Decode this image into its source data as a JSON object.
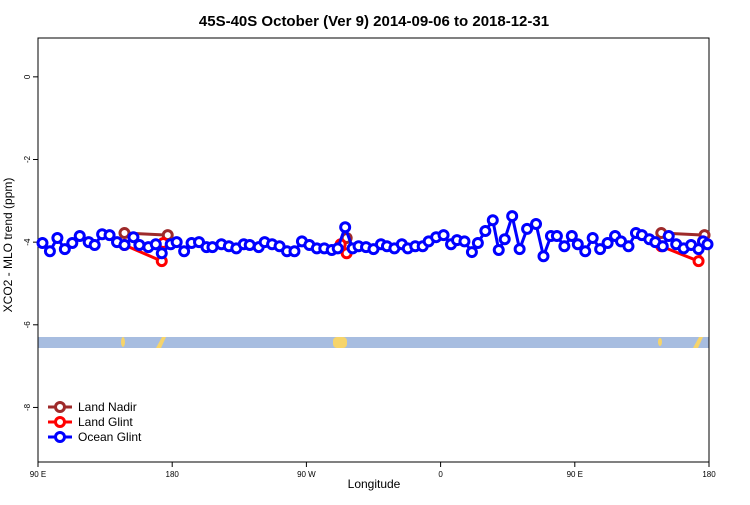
{
  "chart_data": {
    "type": "line",
    "title": "45S-40S October (Ver 9)   2014-09-06 to 2018-12-31",
    "x_label": "Longitude",
    "y_label": "XCO2 - MLO trend (ppm)",
    "xlim": [
      90,
      540
    ],
    "ylim": [
      -9.32,
      0.94
    ],
    "xticks": [
      {
        "value": 90,
        "label": "90 E"
      },
      180,
      {
        "value": 270,
        "label": "90 W"
      },
      {
        "value": 360,
        "label": "0"
      },
      {
        "value": 450,
        "label": "90 E"
      },
      {
        "value": 540,
        "label": "180"
      }
    ],
    "yticks": [
      0,
      -2,
      -4,
      -6,
      -8
    ],
    "legend": "bottom-left",
    "series": [
      {
        "name": "Land Nadir",
        "color": "#9e2a2a",
        "x": [
          148,
          177,
          297,
          508,
          537
        ],
        "values": [
          -3.78,
          -3.83,
          -3.9,
          -3.78,
          -3.83
        ]
      },
      {
        "name": "Land Glint",
        "color": "#ff0000",
        "x": [
          148,
          173,
          174,
          293,
          297,
          508,
          533,
          536
        ],
        "values": [
          -4.07,
          -4.46,
          -4.02,
          -4.05,
          -4.27,
          -4.1,
          -4.46,
          -3.98
        ]
      },
      {
        "name": "Ocean Glint",
        "color": "#0000ff",
        "x": [
          93,
          98,
          103,
          108,
          113,
          118,
          124,
          128,
          133,
          138,
          143,
          148,
          154,
          158,
          164,
          169,
          173,
          179,
          183,
          188,
          193,
          198,
          203,
          207,
          213,
          218,
          223,
          228,
          232,
          238,
          242,
          247,
          252,
          257,
          262,
          267,
          272,
          277,
          282,
          287,
          291,
          296,
          301,
          305,
          310,
          315,
          320,
          324,
          329,
          334,
          338,
          343,
          348,
          352,
          357,
          362,
          367,
          371,
          376,
          381,
          385,
          390,
          395,
          399,
          403,
          408,
          413,
          418,
          424,
          429,
          434,
          438,
          443,
          448,
          452,
          457,
          462,
          467,
          472,
          477,
          481,
          486,
          491,
          495,
          500,
          504,
          509,
          513,
          518,
          523,
          528,
          533,
          536,
          539
        ],
        "values": [
          -4.02,
          -4.22,
          -3.9,
          -4.17,
          -4.02,
          -3.85,
          -4.0,
          -4.07,
          -3.81,
          -3.83,
          -4.0,
          -4.07,
          -3.88,
          -4.07,
          -4.12,
          -4.05,
          -4.27,
          -4.05,
          -4.0,
          -4.22,
          -4.02,
          -4.0,
          -4.12,
          -4.12,
          -4.05,
          -4.1,
          -4.15,
          -4.05,
          -4.07,
          -4.12,
          -4.0,
          -4.05,
          -4.1,
          -4.22,
          -4.22,
          -3.98,
          -4.07,
          -4.15,
          -4.15,
          -4.19,
          -4.15,
          -3.64,
          -4.15,
          -4.1,
          -4.12,
          -4.17,
          -4.05,
          -4.1,
          -4.15,
          -4.05,
          -4.15,
          -4.1,
          -4.1,
          -3.98,
          -3.88,
          -3.83,
          -4.05,
          -3.95,
          -3.98,
          -4.24,
          -4.02,
          -3.73,
          -3.47,
          -4.19,
          -3.93,
          -3.37,
          -4.17,
          -3.68,
          -3.56,
          -4.34,
          -3.85,
          -3.85,
          -4.1,
          -3.85,
          -4.05,
          -4.22,
          -3.9,
          -4.17,
          -4.02,
          -3.85,
          -3.98,
          -4.1,
          -3.78,
          -3.83,
          -3.93,
          -4.0,
          -4.1,
          -3.85,
          -4.05,
          -4.15,
          -4.07,
          -4.17,
          -3.98,
          -4.05
        ]
      }
    ]
  }
}
